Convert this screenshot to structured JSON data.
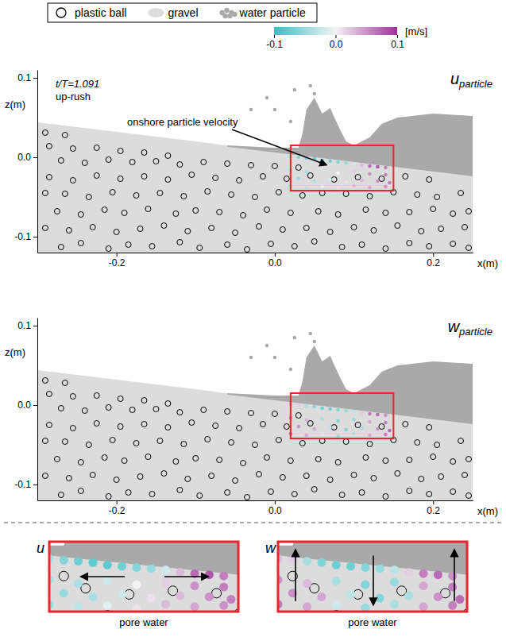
{
  "chart_data": {
    "type": "scatter",
    "time_label": "t/T=1.091",
    "phase": "up-rush",
    "annotation": "onshore particle velocity",
    "xlabel": "x(m)",
    "ylabel": "z(m)",
    "xlim": [
      -0.3,
      0.25
    ],
    "ylim": [
      -0.12,
      0.11
    ],
    "xticks": [
      -0.2,
      {
        "value": 0,
        "label": "0.0"
      },
      0.2
    ],
    "yticks": [
      0.1,
      {
        "value": 0,
        "label": "0.0"
      },
      -0.1
    ],
    "legend": "top",
    "series": [
      {
        "name": "plastic ball",
        "marker": "open-circle",
        "color": "#000000",
        "x": [
          -0.27,
          -0.245,
          -0.21,
          -0.185,
          -0.155,
          -0.12,
          -0.095,
          -0.06,
          -0.035,
          -0.005,
          0.025,
          0.05,
          0.085,
          0.11,
          0.14,
          0.17,
          0.195,
          0.225,
          0.245,
          -0.29,
          -0.26,
          -0.23,
          -0.2,
          -0.17,
          -0.14,
          -0.11,
          -0.08,
          -0.05,
          -0.02,
          0.01,
          0.04,
          0.07,
          0.1,
          0.125,
          0.155,
          0.185,
          0.21,
          0.24,
          -0.275,
          -0.245,
          -0.215,
          -0.19,
          -0.16,
          -0.125,
          -0.1,
          -0.07,
          -0.04,
          -0.01,
          0.02,
          0.055,
          0.08,
          0.115,
          0.14,
          0.17,
          0.2,
          0.225,
          0.245,
          -0.29,
          -0.265,
          -0.235,
          -0.205,
          -0.175,
          -0.145,
          -0.115,
          -0.085,
          -0.055,
          -0.025,
          0.005,
          0.035,
          0.06,
          0.09,
          0.12,
          0.15,
          0.18,
          0.205,
          0.235,
          -0.285,
          -0.255,
          -0.225,
          -0.195,
          -0.165,
          -0.135,
          -0.105,
          -0.075,
          -0.045,
          -0.015,
          0.015,
          0.045,
          0.075,
          0.105,
          0.135,
          0.165,
          0.195,
          -0.27,
          -0.24,
          -0.21,
          -0.18,
          -0.15,
          -0.12,
          -0.09,
          -0.06,
          -0.03,
          0.0,
          0.03,
          -0.285,
          -0.255,
          -0.225,
          -0.195,
          -0.165,
          -0.135,
          -0.29,
          -0.265
        ],
        "y": [
          -0.113,
          -0.108,
          -0.115,
          -0.11,
          -0.112,
          -0.107,
          -0.114,
          -0.11,
          -0.116,
          -0.109,
          -0.112,
          -0.106,
          -0.113,
          -0.11,
          -0.115,
          -0.108,
          -0.112,
          -0.109,
          -0.114,
          -0.089,
          -0.092,
          -0.088,
          -0.094,
          -0.09,
          -0.086,
          -0.093,
          -0.089,
          -0.095,
          -0.087,
          -0.091,
          -0.089,
          -0.094,
          -0.088,
          -0.092,
          -0.086,
          -0.093,
          -0.09,
          -0.088,
          -0.068,
          -0.072,
          -0.066,
          -0.07,
          -0.065,
          -0.071,
          -0.067,
          -0.069,
          -0.073,
          -0.066,
          -0.07,
          -0.068,
          -0.072,
          -0.066,
          -0.07,
          -0.069,
          -0.065,
          -0.071,
          -0.068,
          -0.045,
          -0.046,
          -0.05,
          -0.044,
          -0.048,
          -0.045,
          -0.049,
          -0.043,
          -0.047,
          -0.05,
          -0.044,
          -0.048,
          -0.045,
          -0.046,
          -0.049,
          -0.044,
          -0.047,
          -0.05,
          -0.045,
          -0.025,
          -0.029,
          -0.023,
          -0.027,
          -0.024,
          -0.028,
          -0.022,
          -0.026,
          -0.029,
          -0.024,
          -0.027,
          -0.023,
          -0.028,
          -0.025,
          -0.027,
          -0.024,
          -0.028,
          -0.004,
          -0.007,
          -0.003,
          -0.006,
          -0.005,
          -0.009,
          -0.006,
          -0.008,
          -0.01,
          -0.011,
          -0.013,
          0.014,
          0.011,
          0.012,
          0.008,
          0.006,
          0.002,
          0.031,
          0.028
        ]
      },
      {
        "name": "gravel",
        "type": "area",
        "color": "#dcdcdc",
        "x": [
          -0.3,
          -0.2,
          -0.1,
          0.0,
          0.05,
          0.1,
          0.15,
          0.2,
          0.25
        ],
        "y": [
          0.044,
          0.032,
          0.02,
          0.006,
          0.0,
          -0.006,
          -0.012,
          -0.018,
          -0.024
        ]
      },
      {
        "name": "water particle",
        "type": "polygon",
        "color": "#a9a9a9",
        "x": [
          -0.06,
          0.0,
          0.03,
          0.035,
          0.04,
          0.05,
          0.06,
          0.07,
          0.08,
          0.09,
          0.1,
          0.12,
          0.135,
          0.155,
          0.2,
          0.25,
          0.25,
          0.2,
          0.15,
          0.1,
          0.05,
          0.0,
          -0.06
        ],
        "y": [
          0.015,
          0.012,
          0.012,
          0.03,
          0.06,
          0.075,
          0.055,
          0.062,
          0.04,
          0.02,
          0.015,
          0.025,
          0.042,
          0.05,
          0.055,
          0.052,
          -0.024,
          -0.018,
          -0.012,
          -0.006,
          0.0,
          0.006,
          0.0132
        ],
        "spray_x": [
          -0.03,
          -0.01,
          0.0,
          0.02,
          0.025,
          0.045,
          0.05
        ],
        "spray_y": [
          0.06,
          0.075,
          0.06,
          0.045,
          0.085,
          0.09,
          0.08
        ]
      }
    ],
    "pore_particles": {
      "x": [
        0.02,
        0.03,
        0.04,
        0.05,
        0.06,
        0.07,
        0.08,
        0.09,
        0.1,
        0.11,
        0.12,
        0.13,
        0.14,
        0.02,
        0.04,
        0.06,
        0.08,
        0.1,
        0.12,
        0.14,
        0.03,
        0.05,
        0.07,
        0.09,
        0.11,
        0.13,
        0.145,
        0.02,
        0.04,
        0.06,
        0.08,
        0.1,
        0.12,
        0.14
      ],
      "z": [
        0.001,
        0.0,
        -0.001,
        -0.002,
        -0.004,
        -0.005,
        -0.006,
        -0.007,
        -0.008,
        -0.01,
        -0.011,
        -0.012,
        -0.013,
        -0.016,
        -0.019,
        -0.017,
        -0.02,
        -0.018,
        -0.021,
        -0.022,
        -0.027,
        -0.03,
        -0.028,
        -0.031,
        -0.029,
        -0.03,
        -0.032,
        -0.036,
        -0.038,
        -0.037,
        -0.039,
        -0.036,
        -0.038,
        -0.037
      ],
      "u": [
        -0.04,
        -0.06,
        -0.07,
        -0.08,
        -0.08,
        -0.07,
        -0.06,
        -0.05,
        -0.02,
        0.03,
        0.07,
        0.08,
        0.06,
        -0.04,
        -0.04,
        -0.02,
        0.0,
        0.02,
        0.05,
        0.06,
        -0.05,
        -0.04,
        -0.02,
        0.01,
        0.03,
        0.05,
        0.06,
        -0.05,
        -0.03,
        -0.01,
        0.01,
        0.03,
        0.04,
        0.05
      ],
      "w": [
        0.03,
        0.02,
        -0.04,
        -0.06,
        -0.07,
        -0.07,
        -0.06,
        -0.05,
        -0.03,
        0.02,
        0.06,
        0.07,
        0.05,
        0.05,
        0.03,
        -0.04,
        -0.06,
        -0.05,
        0.04,
        0.06,
        0.05,
        0.04,
        -0.03,
        -0.06,
        -0.04,
        0.05,
        0.07,
        0.06,
        0.04,
        -0.02,
        -0.05,
        -0.04,
        0.04,
        0.06
      ]
    },
    "region": {
      "xlim": [
        0.02,
        0.15
      ],
      "ylim": [
        -0.042,
        0.015
      ]
    },
    "colorbar": {
      "range": [
        -0.1,
        0.1
      ],
      "ticks": [
        -0.1,
        {
          "value": 0,
          "label": "0.0"
        },
        0.1
      ],
      "unit": "[m/s]",
      "colors": [
        "#38bfc7",
        "#f4f4f4",
        "#a12f9c"
      ]
    },
    "panels": [
      {
        "variable": "u",
        "subscript": "particle"
      },
      {
        "variable": "w",
        "subscript": "particle"
      }
    ],
    "insets": [
      {
        "variable": "u",
        "label": "pore water"
      },
      {
        "variable": "w",
        "label": "pore water"
      }
    ]
  }
}
